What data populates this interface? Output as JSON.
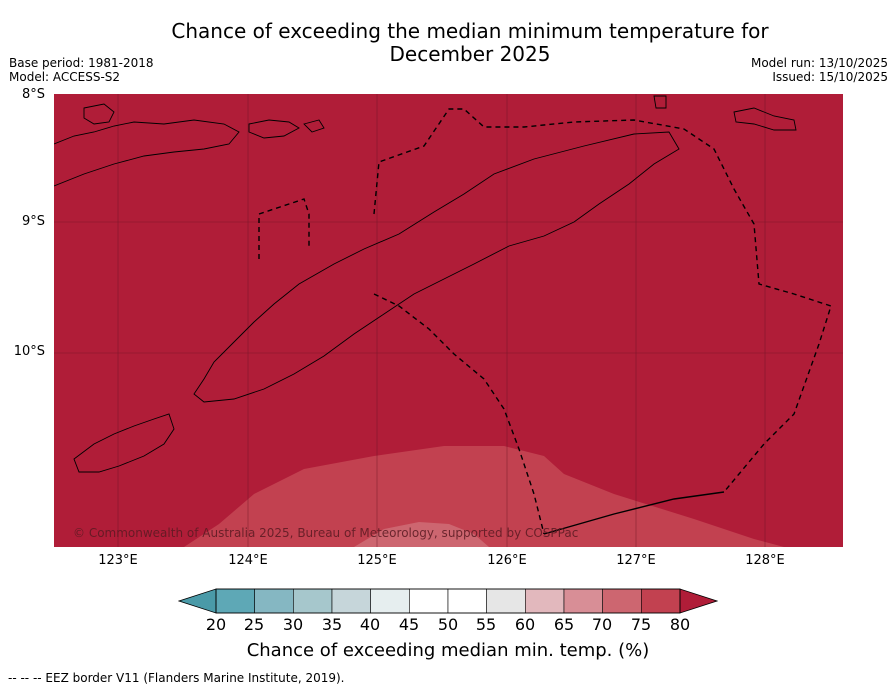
{
  "title_line1": "Chance of exceeding the median minimum temperature for",
  "title_line2": "December 2025",
  "base_period": "Base period: 1981-2018",
  "model": "Model: ACCESS-S2",
  "model_run": "Model run: 13/10/2025",
  "issued": "Issued: 15/10/2025",
  "lat_labels": [
    "8°S",
    "9°S",
    "10°S"
  ],
  "lon_labels": [
    "123°E",
    "124°E",
    "125°E",
    "126°E",
    "127°E",
    "128°E"
  ],
  "copyright": "© Commonwealth of Australia 2025, Bureau of Meteorology, supported by COSPPac",
  "colorbar": {
    "ticks": [
      "20",
      "25",
      "30",
      "35",
      "40",
      "45",
      "50",
      "55",
      "60",
      "65",
      "70",
      "75",
      "80"
    ],
    "title": "Chance of exceeding median min. temp. (%)",
    "colors": [
      "#5ea8b6",
      "#85b7c2",
      "#a6c7cc",
      "#c6d6da",
      "#e6eeef",
      "#ffffff",
      "#ffffff",
      "#e6e6e6",
      "#e2b8bd",
      "#d88e96",
      "#cd6670",
      "#c24150"
    ],
    "under_color": "#4a9aa8",
    "over_color": "#b01d38"
  },
  "map_colors": {
    "high": "#b01d38",
    "mid": "#c24150",
    "low": "#cd6670"
  },
  "footnote": "--  --  -- EEZ border V11 (Flanders Marine Institute, 2019)."
}
